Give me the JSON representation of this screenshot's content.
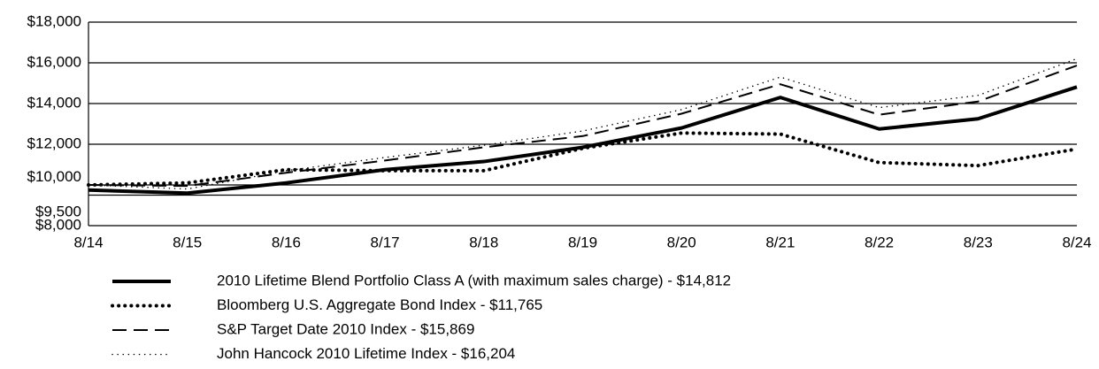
{
  "chart_data": {
    "type": "line",
    "categories": [
      "8/14",
      "8/15",
      "8/16",
      "8/17",
      "8/18",
      "8/19",
      "8/20",
      "8/21",
      "8/22",
      "8/23",
      "8/24"
    ],
    "series": [
      {
        "name": "2010 Lifetime Blend Portfolio Class A (with maximum sales charge)  - $14,812",
        "color": "#000000",
        "values": [
          9750,
          9600,
          10100,
          10750,
          11150,
          11850,
          12800,
          14300,
          12750,
          13250,
          14812
        ]
      },
      {
        "name": "Bloomberg U.S. Aggregate Bond Index - $11,765",
        "color": "#000000",
        "values": [
          10000,
          10100,
          10750,
          10700,
          10700,
          11800,
          12550,
          12500,
          11100,
          10950,
          11765
        ]
      },
      {
        "name": "S&P Target Date 2010 Index - $15,869",
        "color": "#000000",
        "values": [
          10000,
          9950,
          10600,
          11200,
          11850,
          12400,
          13500,
          14950,
          13450,
          14100,
          15869
        ]
      },
      {
        "name": "John Hancock 2010 Lifetime Index - $16,204",
        "color": "#000000",
        "values": [
          10000,
          9800,
          10700,
          11350,
          11950,
          12650,
          13700,
          15300,
          13800,
          14400,
          16204
        ]
      }
    ],
    "ylim": [
      8000,
      18000
    ],
    "yticks": [
      {
        "value": 8000,
        "label": "$8,000"
      },
      {
        "value": 9500,
        "label": "$9,500"
      },
      {
        "value": 10000,
        "label": "$10,000"
      },
      {
        "value": 12000,
        "label": "$12,000"
      },
      {
        "value": 14000,
        "label": "$14,000"
      },
      {
        "value": 16000,
        "label": "$16,000"
      },
      {
        "value": 18000,
        "label": "$18,000"
      }
    ],
    "grid": true
  }
}
